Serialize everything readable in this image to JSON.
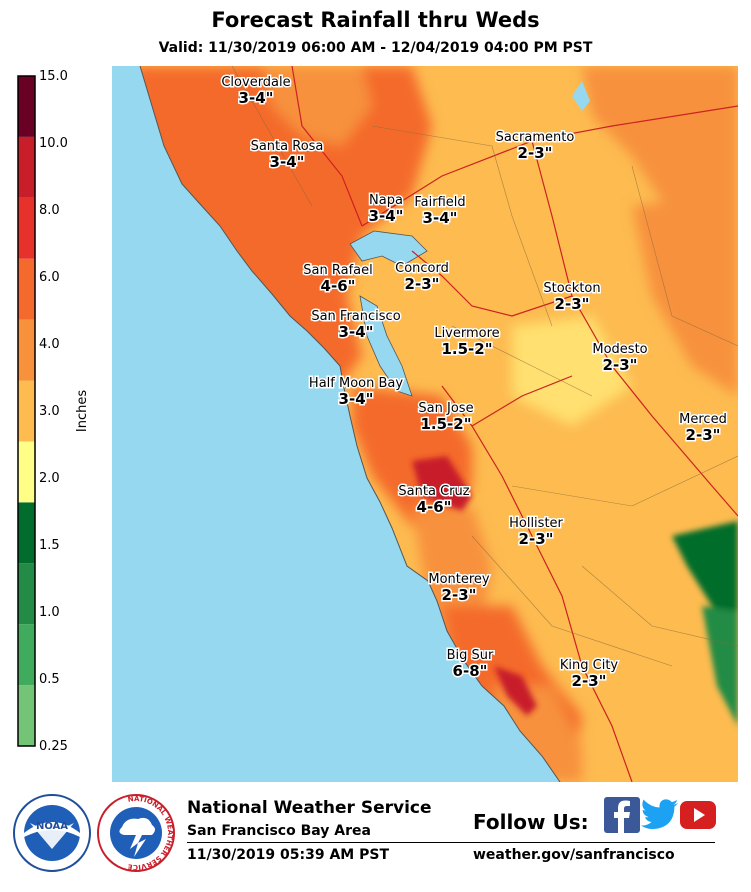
{
  "header": {
    "title": "Forecast Rainfall thru Weds",
    "subtitle": "Valid: 11/30/2019 06:00 AM - 12/04/2019 04:00 PM PST"
  },
  "legend": {
    "axis_label": "Inches",
    "bins": [
      {
        "label": "0.25",
        "color": "#74c476"
      },
      {
        "label": "0.5",
        "color": "#41ab5d"
      },
      {
        "label": "1.0",
        "color": "#238b45"
      },
      {
        "label": "1.5",
        "color": "#006d2c"
      },
      {
        "label": "2.0",
        "color": "#ffff88"
      },
      {
        "label": "3.0",
        "color": "#fdbb50"
      },
      {
        "label": "4.0",
        "color": "#f7913c"
      },
      {
        "label": "6.0",
        "color": "#f46a2c"
      },
      {
        "label": "8.0",
        "color": "#e6322a"
      },
      {
        "label": "10.0",
        "color": "#c81e2a"
      },
      {
        "label": "15.0",
        "color": "#9a0a2a"
      }
    ],
    "top_color": "#6a0024"
  },
  "map": {
    "ocean_color": "#96d8ef",
    "cities": [
      {
        "name": "Cloverdale",
        "amount": "3-4\""
      },
      {
        "name": "Santa Rosa",
        "amount": "3-4\""
      },
      {
        "name": "Napa",
        "amount": "3-4\""
      },
      {
        "name": "Fairfield",
        "amount": "3-4\""
      },
      {
        "name": "Sacramento",
        "amount": "2-3\""
      },
      {
        "name": "San Rafael",
        "amount": "4-6\""
      },
      {
        "name": "Concord",
        "amount": "2-3\""
      },
      {
        "name": "Stockton",
        "amount": "2-3\""
      },
      {
        "name": "San Francisco",
        "amount": "3-4\""
      },
      {
        "name": "Livermore",
        "amount": "1.5-2\""
      },
      {
        "name": "Modesto",
        "amount": "2-3\""
      },
      {
        "name": "Half Moon Bay",
        "amount": "3-4\""
      },
      {
        "name": "San Jose",
        "amount": "1.5-2\""
      },
      {
        "name": "Merced",
        "amount": "2-3\""
      },
      {
        "name": "Santa Cruz",
        "amount": "4-6\""
      },
      {
        "name": "Hollister",
        "amount": "2-3\""
      },
      {
        "name": "Monterey",
        "amount": "2-3\""
      },
      {
        "name": "Big Sur",
        "amount": "6-8\""
      },
      {
        "name": "King City",
        "amount": "2-3\""
      }
    ]
  },
  "footer": {
    "agency": "National Weather Service",
    "office": "San Francisco Bay Area",
    "issued": "11/30/2019 05:39 AM PST",
    "follow_label": "Follow Us:",
    "website": "weather.gov/sanfrancisco",
    "social_icons": [
      "facebook-icon",
      "twitter-icon",
      "youtube-icon"
    ],
    "noaa_logo_text": "NOAA",
    "nws_logo_text": "NATIONAL WEATHER SERVICE"
  }
}
